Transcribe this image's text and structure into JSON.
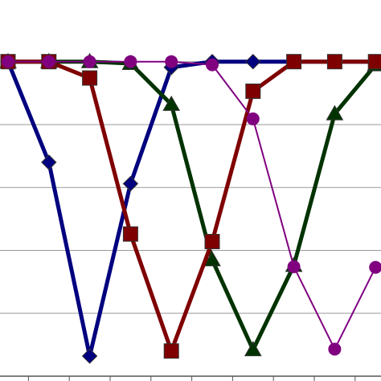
{
  "chart_data": {
    "type": "line",
    "categories": [
      null,
      null,
      null,
      null,
      null,
      null,
      null,
      null,
      null,
      null
    ],
    "series": [
      {
        "color": "#00007f",
        "marker": "diamond",
        "values": [
          5,
          3.4,
          0.32,
          3.06,
          4.91,
          5,
          5,
          5,
          5,
          5
        ]
      },
      {
        "color": "#003300",
        "marker": "triangle",
        "values": [
          5,
          5,
          5,
          4.97,
          4.32,
          1.85,
          0.42,
          1.76,
          4.17,
          4.95
        ]
      },
      {
        "color": "#7f0000",
        "marker": "square",
        "values": [
          5,
          5,
          4.74,
          2.26,
          0.4,
          2.14,
          4.53,
          5,
          5,
          5
        ]
      },
      {
        "color": "#800080",
        "marker": "circle",
        "values": [
          5,
          5,
          5,
          5,
          5,
          4.95,
          4.09,
          1.74,
          0.43,
          1.73
        ]
      }
    ],
    "ylim": [
      0,
      5.98
    ],
    "yticks": [
      0,
      1,
      2,
      3,
      4,
      5
    ],
    "grid": true
  }
}
